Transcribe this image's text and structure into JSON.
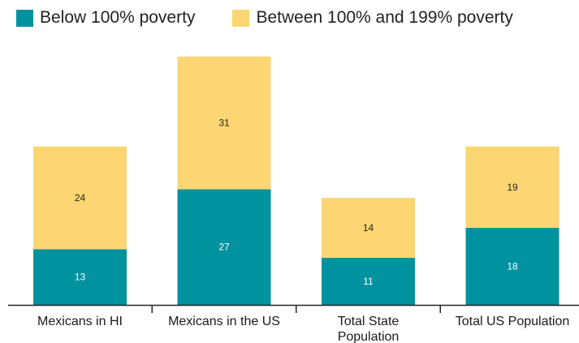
{
  "chart_data": {
    "type": "bar",
    "stacked": true,
    "categories": [
      "Mexicans in HI",
      "Mexicans in the US",
      "Total State Population",
      "Total US Population"
    ],
    "category_lines": [
      [
        "Mexicans in HI"
      ],
      [
        "Mexicans in the US"
      ],
      [
        "Total State",
        "Population"
      ],
      [
        "Total US Population"
      ]
    ],
    "series": [
      {
        "name": "Below 100% poverty",
        "values": [
          13,
          27,
          11,
          18
        ],
        "color": "#00929f",
        "label_color": "#ffffff"
      },
      {
        "name": "Between 100% and 199% poverty",
        "values": [
          24,
          31,
          14,
          19
        ],
        "color": "#fcd672",
        "label_color": "#222222"
      }
    ],
    "ylim": [
      0,
      60
    ],
    "grid": false,
    "legend_position": "top"
  }
}
